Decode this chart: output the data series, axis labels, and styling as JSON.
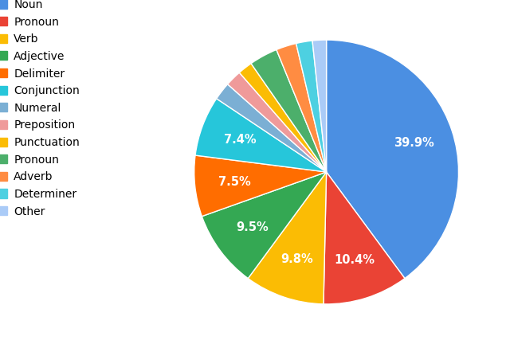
{
  "labels": [
    "Noun",
    "Pronoun",
    "Verb",
    "Adjective",
    "Delimiter",
    "Conjunction",
    "Numeral",
    "Preposition",
    "Punctuation",
    "Pronoun",
    "Adverb",
    "Determiner",
    "Other"
  ],
  "values": [
    40.1,
    10.5,
    9.8,
    9.5,
    7.5,
    7.4,
    2.2,
    2.0,
    1.8,
    3.5,
    2.5,
    2.0,
    1.7
  ],
  "colors": [
    "#4B8FE2",
    "#EA4335",
    "#FBBC04",
    "#34A853",
    "#FF6D00",
    "#26C6DA",
    "#7BAFD4",
    "#EF9A9A",
    "#FBBC04",
    "#4CAF6B",
    "#FF8C42",
    "#4DD0E1",
    "#AACBF7"
  ],
  "threshold": 7.0,
  "background_color": "#ffffff",
  "text_color": "#ffffff",
  "fontsize_legend": 10,
  "fontsize_autopct": 10.5,
  "startangle": 90
}
